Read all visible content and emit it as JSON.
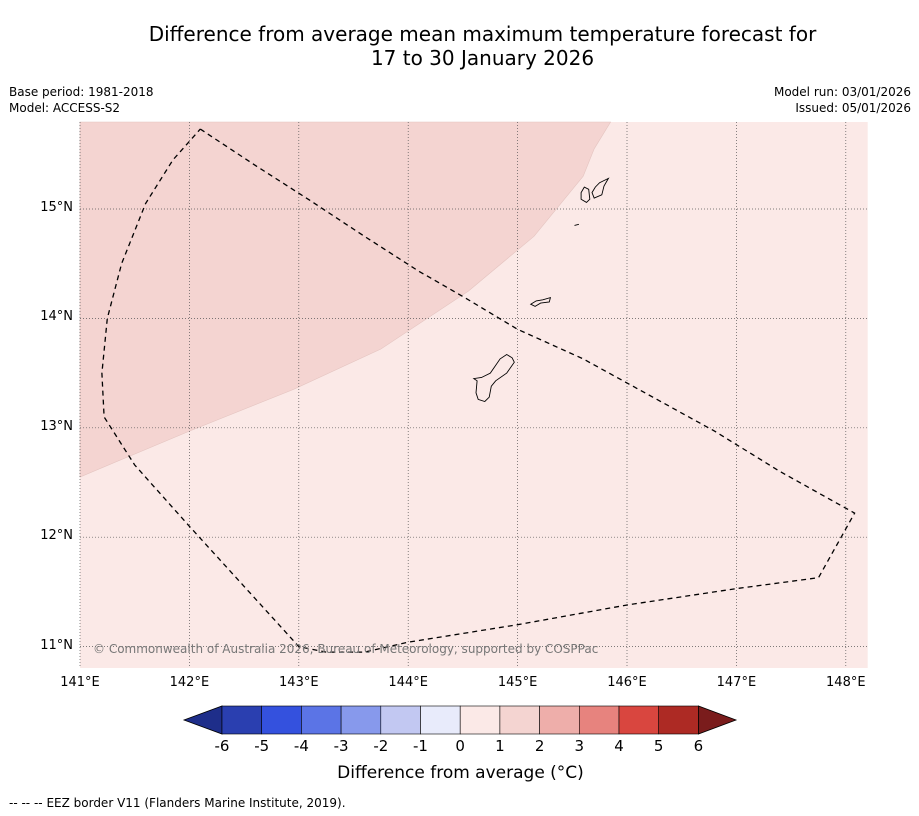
{
  "title": {
    "line1": "Difference from average mean maximum temperature forecast for",
    "line2": "17 to 30 January 2026"
  },
  "meta_left": {
    "base_period": "Base period: 1981-2018",
    "model": "Model: ACCESS-S2"
  },
  "meta_right": {
    "model_run": "Model run: 03/01/2026",
    "issued": "Issued: 05/01/2026"
  },
  "map": {
    "lon_range": [
      141.0,
      148.2
    ],
    "lat_range": [
      10.8,
      15.8
    ],
    "x_ticks": [
      {
        "lon": 141,
        "label": "141°E"
      },
      {
        "lon": 142,
        "label": "142°E"
      },
      {
        "lon": 143,
        "label": "143°E"
      },
      {
        "lon": 144,
        "label": "144°E"
      },
      {
        "lon": 145,
        "label": "145°E"
      },
      {
        "lon": 146,
        "label": "146°E"
      },
      {
        "lon": 147,
        "label": "147°E"
      },
      {
        "lon": 148,
        "label": "148°E"
      }
    ],
    "y_ticks": [
      {
        "lat": 15,
        "label": "15°N"
      },
      {
        "lat": 14,
        "label": "14°N"
      },
      {
        "lat": 13,
        "label": "13°N"
      },
      {
        "lat": 12,
        "label": "12°N"
      },
      {
        "lat": 11,
        "label": "11°N"
      }
    ],
    "zones": [
      {
        "name": "anomaly 0 to 1 °C",
        "color": "#fbe9e7",
        "polygon": [
          [
            141.0,
            10.8
          ],
          [
            148.2,
            10.8
          ],
          [
            148.2,
            15.8
          ],
          [
            141.0,
            15.8
          ]
        ]
      },
      {
        "name": "anomaly 1 to 2 °C",
        "color": "#f4d4d1",
        "polygon": [
          [
            141.0,
            15.8
          ],
          [
            145.85,
            15.8
          ],
          [
            145.7,
            15.55
          ],
          [
            145.6,
            15.3
          ],
          [
            145.15,
            14.75
          ],
          [
            144.55,
            14.25
          ],
          [
            143.75,
            13.72
          ],
          [
            142.95,
            13.35
          ],
          [
            142.0,
            12.97
          ],
          [
            141.0,
            12.55
          ]
        ]
      }
    ],
    "eez_border": [
      [
        142.1,
        15.73
      ],
      [
        142.6,
        15.4
      ],
      [
        143.1,
        15.08
      ],
      [
        143.6,
        14.75
      ],
      [
        144.1,
        14.43
      ],
      [
        144.5,
        14.2
      ],
      [
        145.0,
        13.9
      ],
      [
        145.6,
        13.63
      ],
      [
        146.2,
        13.3
      ],
      [
        146.8,
        12.97
      ],
      [
        147.4,
        12.6
      ],
      [
        148.08,
        12.22
      ],
      [
        147.75,
        11.63
      ],
      [
        147.0,
        11.53
      ],
      [
        146.0,
        11.38
      ],
      [
        145.0,
        11.2
      ],
      [
        144.0,
        11.04
      ],
      [
        143.6,
        10.95
      ],
      [
        143.25,
        10.95
      ],
      [
        143.0,
        11.0
      ],
      [
        142.5,
        11.55
      ],
      [
        142.0,
        12.1
      ],
      [
        141.5,
        12.66
      ],
      [
        141.22,
        13.1
      ],
      [
        141.2,
        13.5
      ],
      [
        141.25,
        14.0
      ],
      [
        141.38,
        14.5
      ],
      [
        141.6,
        15.05
      ],
      [
        141.85,
        15.45
      ],
      [
        142.1,
        15.73
      ]
    ],
    "islands": [
      {
        "name": "Guam",
        "outline": [
          [
            144.95,
            13.64
          ],
          [
            144.97,
            13.6
          ],
          [
            144.9,
            13.5
          ],
          [
            144.8,
            13.43
          ],
          [
            144.76,
            13.38
          ],
          [
            144.74,
            13.28
          ],
          [
            144.7,
            13.24
          ],
          [
            144.64,
            13.26
          ],
          [
            144.62,
            13.32
          ],
          [
            144.63,
            13.43
          ],
          [
            144.6,
            13.45
          ],
          [
            144.67,
            13.46
          ],
          [
            144.75,
            13.5
          ],
          [
            144.84,
            13.63
          ],
          [
            144.9,
            13.67
          ],
          [
            144.95,
            13.64
          ]
        ]
      },
      {
        "name": "Rota",
        "outline": [
          [
            145.12,
            14.13
          ],
          [
            145.17,
            14.16
          ],
          [
            145.23,
            14.17
          ],
          [
            145.3,
            14.19
          ],
          [
            145.29,
            14.15
          ],
          [
            145.21,
            14.14
          ],
          [
            145.16,
            14.11
          ],
          [
            145.12,
            14.13
          ]
        ]
      },
      {
        "name": "Tinian",
        "outline": [
          [
            145.58,
            15.09
          ],
          [
            145.63,
            15.06
          ],
          [
            145.66,
            15.09
          ],
          [
            145.65,
            15.18
          ],
          [
            145.61,
            15.2
          ],
          [
            145.58,
            15.15
          ],
          [
            145.58,
            15.09
          ]
        ]
      },
      {
        "name": "Saipan",
        "outline": [
          [
            145.7,
            15.1
          ],
          [
            145.77,
            15.13
          ],
          [
            145.79,
            15.21
          ],
          [
            145.83,
            15.28
          ],
          [
            145.75,
            15.24
          ],
          [
            145.71,
            15.2
          ],
          [
            145.68,
            15.15
          ],
          [
            145.7,
            15.1
          ]
        ]
      },
      {
        "name": "Aguijan",
        "outline": [
          [
            145.52,
            14.85
          ],
          [
            145.56,
            14.86
          ]
        ]
      }
    ],
    "copyright": "© Commonwealth of Australia 2026, Bureau of Meteorology, supported by COSPPac"
  },
  "colorbar": {
    "title": "Difference from average (°C)",
    "ticks": [
      "-6",
      "-5",
      "-4",
      "-3",
      "-2",
      "-1",
      "0",
      "1",
      "2",
      "3",
      "4",
      "5",
      "6"
    ],
    "under_color": "#1e2e8a",
    "over_color": "#7a1c1c",
    "bins": [
      {
        "range": "-6 to -5",
        "color": "#2a3fb0"
      },
      {
        "range": "-5 to -4",
        "color": "#3451de"
      },
      {
        "range": "-4 to -3",
        "color": "#5b74e6"
      },
      {
        "range": "-3 to -2",
        "color": "#8799ec"
      },
      {
        "range": "-2 to -1",
        "color": "#c2c8f2"
      },
      {
        "range": "-1 to 0",
        "color": "#e8ebfb"
      },
      {
        "range": "0 to 1",
        "color": "#fbe9e7"
      },
      {
        "range": "1 to 2",
        "color": "#f4d4d1"
      },
      {
        "range": "2 to 3",
        "color": "#eeaeaa"
      },
      {
        "range": "3 to 4",
        "color": "#e7837e"
      },
      {
        "range": "4 to 5",
        "color": "#d9463f"
      },
      {
        "range": "5 to 6",
        "color": "#ad2a24"
      }
    ]
  },
  "footer": {
    "symbol": "-- -- --",
    "text": "EEZ border V11 (Flanders Marine Institute, 2019)."
  }
}
